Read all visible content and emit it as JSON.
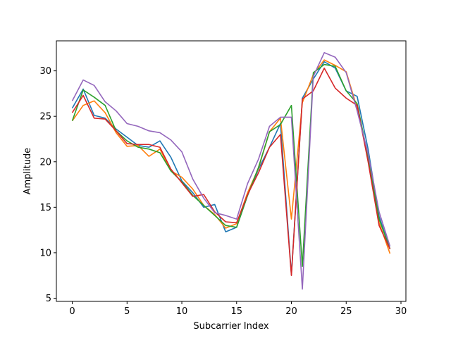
{
  "chart_data": {
    "type": "line",
    "title": "",
    "xlabel": "Subcarrier Index",
    "ylabel": "Amplitude",
    "xlim": [
      -1.45,
      30.45
    ],
    "ylim": [
      4.65,
      33.3
    ],
    "xticks": [
      0,
      5,
      10,
      15,
      20,
      25,
      30
    ],
    "yticks": [
      5,
      10,
      15,
      20,
      25,
      30
    ],
    "grid": false,
    "legend": "none",
    "x": [
      0,
      1,
      2,
      3,
      4,
      5,
      6,
      7,
      8,
      9,
      10,
      11,
      12,
      13,
      14,
      15,
      16,
      17,
      18,
      19,
      20,
      21,
      22,
      23,
      24,
      25,
      26,
      27,
      28,
      29
    ],
    "series": [
      {
        "color": "#1f77b4",
        "values": [
          25.9,
          28.0,
          25.1,
          24.8,
          23.6,
          22.7,
          21.8,
          21.6,
          22.3,
          20.5,
          17.9,
          16.6,
          15.0,
          15.3,
          12.3,
          12.8,
          16.3,
          19.2,
          21.6,
          24.2,
          7.6,
          27.0,
          29.1,
          31.0,
          30.3,
          27.8,
          27.2,
          21.4,
          14.0,
          10.4
        ]
      },
      {
        "color": "#ff7f0e",
        "values": [
          24.5,
          26.2,
          26.7,
          25.4,
          23.2,
          21.7,
          21.8,
          20.6,
          21.4,
          19.0,
          18.3,
          17.0,
          15.2,
          14.2,
          12.7,
          13.2,
          16.6,
          19.3,
          23.3,
          24.8,
          13.7,
          26.5,
          29.6,
          31.2,
          30.6,
          29.9,
          25.9,
          20.4,
          13.3,
          9.9
        ]
      },
      {
        "color": "#2ca02c",
        "values": [
          24.5,
          27.9,
          27.1,
          26.2,
          23.4,
          22.3,
          21.6,
          21.4,
          21.0,
          19.0,
          17.8,
          16.3,
          15.2,
          14.1,
          13.0,
          12.8,
          16.3,
          19.4,
          23.3,
          24.1,
          26.2,
          8.5,
          29.8,
          30.7,
          30.5,
          27.8,
          26.4,
          20.5,
          13.7,
          10.4
        ]
      },
      {
        "color": "#d62728",
        "values": [
          25.4,
          27.3,
          24.8,
          24.7,
          23.4,
          22.0,
          21.9,
          21.9,
          21.6,
          19.2,
          17.7,
          16.2,
          16.4,
          14.5,
          13.4,
          13.3,
          16.4,
          18.8,
          21.6,
          23.0,
          7.5,
          26.9,
          27.8,
          30.3,
          28.1,
          27.0,
          26.2,
          20.0,
          13.0,
          10.4
        ]
      },
      {
        "color": "#9467bd",
        "values": [
          26.7,
          29.0,
          28.4,
          26.6,
          25.6,
          24.2,
          23.9,
          23.4,
          23.2,
          22.4,
          21.1,
          18.1,
          16.0,
          14.4,
          14.1,
          13.7,
          17.6,
          20.3,
          23.9,
          24.9,
          24.9,
          6.0,
          29.4,
          32.0,
          31.5,
          29.8,
          25.6,
          20.9,
          14.5,
          10.7
        ]
      }
    ]
  }
}
